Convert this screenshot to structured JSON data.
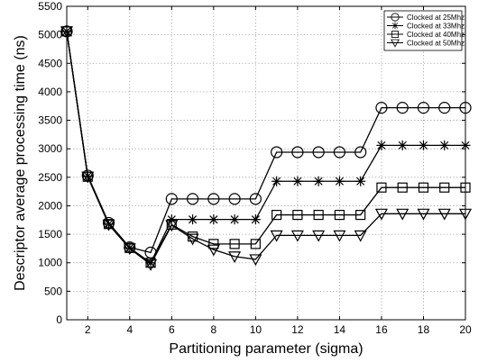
{
  "chart_data": {
    "type": "line",
    "title": "",
    "xlabel": "Partitioning parameter (sigma)",
    "ylabel": "Descriptor average processing time (ns)",
    "xlim": [
      1,
      20
    ],
    "ylim": [
      0,
      5500
    ],
    "xticks": [
      2,
      4,
      6,
      8,
      10,
      12,
      14,
      16,
      18,
      20
    ],
    "yticks": [
      0,
      500,
      1000,
      1500,
      2000,
      2500,
      3000,
      3500,
      4000,
      4500,
      5000,
      5500
    ],
    "grid": true,
    "legend_position": "top-right",
    "x": [
      1,
      2,
      3,
      4,
      5,
      6,
      7,
      8,
      9,
      10,
      11,
      12,
      13,
      14,
      15,
      16,
      17,
      18,
      19,
      20
    ],
    "series": [
      {
        "name": "Clocked at 25Mhz",
        "marker": "circle",
        "values": [
          5060,
          2530,
          1700,
          1270,
          1180,
          2120,
          2120,
          2120,
          2120,
          2120,
          2940,
          2940,
          2940,
          2940,
          2940,
          3720,
          3720,
          3720,
          3720,
          3720
        ]
      },
      {
        "name": "Clocked at 33Mhz",
        "marker": "star",
        "values": [
          5060,
          2520,
          1680,
          1260,
          1000,
          1760,
          1760,
          1760,
          1760,
          1760,
          2430,
          2430,
          2430,
          2430,
          2430,
          3060,
          3060,
          3060,
          3060,
          3060
        ]
      },
      {
        "name": "Clocked at 40Mhz",
        "marker": "square",
        "values": [
          5060,
          2510,
          1680,
          1260,
          1000,
          1670,
          1460,
          1330,
          1330,
          1330,
          1840,
          1840,
          1840,
          1840,
          1840,
          2320,
          2320,
          2320,
          2320,
          2320
        ]
      },
      {
        "name": "Clocked at 50Mhz",
        "marker": "triangle-down",
        "values": [
          5060,
          2510,
          1670,
          1250,
          970,
          1660,
          1420,
          1230,
          1110,
          1060,
          1480,
          1480,
          1480,
          1480,
          1480,
          1860,
          1860,
          1860,
          1860,
          1860
        ]
      }
    ]
  }
}
